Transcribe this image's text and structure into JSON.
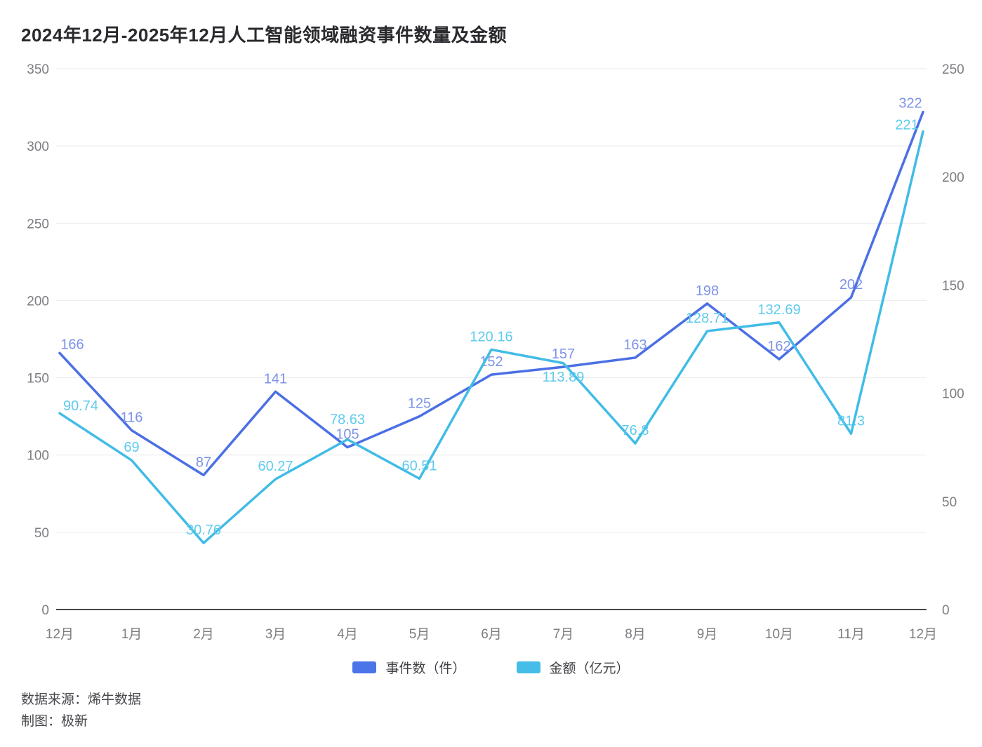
{
  "title": "2024年12月-2025年12月人工智能领域融资事件数量及金额",
  "legend": {
    "events": {
      "label": "事件数（件）",
      "color": "#4a74e8"
    },
    "amount": {
      "label": "金额（亿元）",
      "color": "#45bde8"
    }
  },
  "footer": {
    "source": "数据来源：烯牛数据",
    "credit": "制图：极新"
  },
  "chart_data": {
    "type": "line",
    "title": "2024年12月-2025年12月人工智能领域融资事件数量及金额",
    "categories": [
      "12月",
      "1月",
      "2月",
      "3月",
      "4月",
      "5月",
      "6月",
      "7月",
      "8月",
      "9月",
      "10月",
      "11月",
      "12月"
    ],
    "series": [
      {
        "name": "事件数（件）",
        "axis": "left",
        "color": "#4b6fe4",
        "label_color": "#7d92ea",
        "values": [
          166,
          116,
          87,
          141,
          105,
          125,
          152,
          157,
          163,
          198,
          162,
          202,
          322
        ]
      },
      {
        "name": "金额（亿元）",
        "axis": "right",
        "color": "#41bce6",
        "label_color": "#5ecbee",
        "values": [
          90.74,
          69,
          30.76,
          60.27,
          78.63,
          60.51,
          120.16,
          113.89,
          76.8,
          128.71,
          132.69,
          81.3,
          221
        ]
      }
    ],
    "left_axis": {
      "label": "",
      "min": 0,
      "max": 350,
      "ticks": [
        0,
        50,
        100,
        150,
        200,
        250,
        300,
        350
      ]
    },
    "right_axis": {
      "label": "",
      "min": 0,
      "max": 250,
      "ticks": [
        0,
        50,
        100,
        150,
        200,
        250
      ]
    },
    "grid": true,
    "legend_position": "bottom",
    "label_offsets": {
      "0:0": {
        "dx": 18,
        "dy": 6
      },
      "0:12": {
        "dx": -18,
        "dy": 6
      },
      "1:0": {
        "dx": 30,
        "dy": 8
      },
      "1:4": {
        "dx": 0,
        "dy": -10
      },
      "1:7": {
        "dx": 0,
        "dy": 38
      },
      "1:12": {
        "dx": -23,
        "dy": 9
      }
    }
  }
}
